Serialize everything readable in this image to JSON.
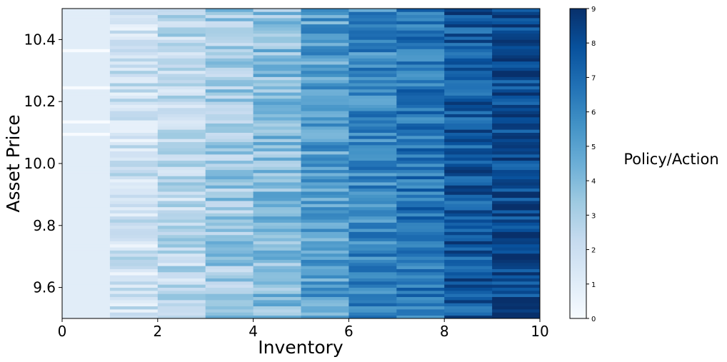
{
  "chart_data": {
    "type": "heatmap",
    "xlabel": "Inventory",
    "ylabel": "Asset Price",
    "colorbar_label": "Policy/Action",
    "colormap": "Blues",
    "xlim": [
      0,
      10
    ],
    "ylim": [
      9.5,
      10.5
    ],
    "x_ticks": [
      0,
      2,
      4,
      6,
      8,
      10
    ],
    "y_ticks": [
      9.6,
      9.8,
      10.0,
      10.2,
      10.4
    ],
    "colorbar_range": [
      0,
      9
    ],
    "colorbar_ticks": [
      0,
      1,
      2,
      3,
      4,
      5,
      6,
      7,
      8,
      9
    ],
    "inventory_levels": [
      0,
      1,
      2,
      3,
      4,
      5,
      6,
      7,
      8,
      9
    ],
    "price_levels": 100,
    "column_action_mean": [
      1.0,
      1.8,
      2.4,
      3.3,
      3.9,
      5.1,
      5.9,
      6.7,
      7.6,
      8.2
    ],
    "grid": false
  }
}
